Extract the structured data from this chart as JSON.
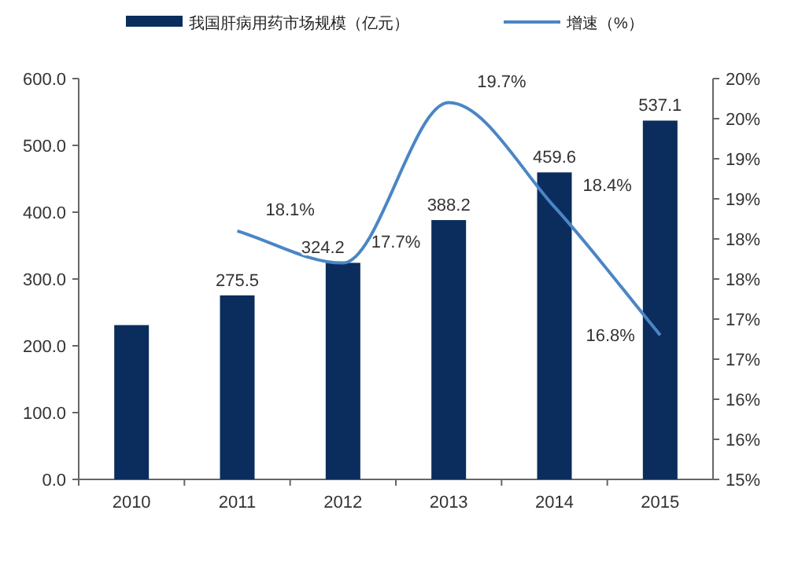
{
  "chart_data": {
    "type": "bar",
    "categories": [
      "2010",
      "2011",
      "2012",
      "2013",
      "2014",
      "2015"
    ],
    "series": [
      {
        "name": "我国肝病用药市场规模（亿元）",
        "color": "#0b2d5e",
        "values": [
          231,
          275.5,
          324.2,
          388.2,
          459.6,
          537.1
        ],
        "value_labels": [
          null,
          "275.5",
          "324.2",
          "388.2",
          "459.6",
          "537.1"
        ]
      },
      {
        "name": "增速（%）",
        "type": "line",
        "axis": "y2",
        "color": "#4a86c5",
        "values": [
          null,
          18.1,
          17.7,
          19.7,
          18.4,
          16.8
        ],
        "value_labels": [
          null,
          "18.1%",
          "17.7%",
          "19.7%",
          "18.4%",
          "16.8%"
        ]
      }
    ],
    "ylim": [
      0,
      600
    ],
    "yticks": [
      {
        "value": 0,
        "label": "0.0"
      },
      {
        "value": 100,
        "label": "100.0"
      },
      {
        "value": 200,
        "label": "200.0"
      },
      {
        "value": 300,
        "label": "300.0"
      },
      {
        "value": 400,
        "label": "400.0"
      },
      {
        "value": 500,
        "label": "500.0"
      },
      {
        "value": 600,
        "label": "600.0"
      }
    ],
    "y2lim": [
      15,
      20
    ],
    "y2ticks": [
      {
        "value": 15,
        "label": "15%"
      },
      {
        "value": 15.5,
        "label": "16%"
      },
      {
        "value": 16,
        "label": "16%"
      },
      {
        "value": 16.5,
        "label": "17%"
      },
      {
        "value": 17,
        "label": "17%"
      },
      {
        "value": 17.5,
        "label": "18%"
      },
      {
        "value": 18,
        "label": "18%"
      },
      {
        "value": 18.5,
        "label": "19%"
      },
      {
        "value": 19,
        "label": "19%"
      },
      {
        "value": 19.5,
        "label": "20%"
      },
      {
        "value": 20,
        "label": "20%"
      }
    ],
    "legend": "top",
    "grid": false,
    "marker": "none",
    "line_style": "solid"
  }
}
